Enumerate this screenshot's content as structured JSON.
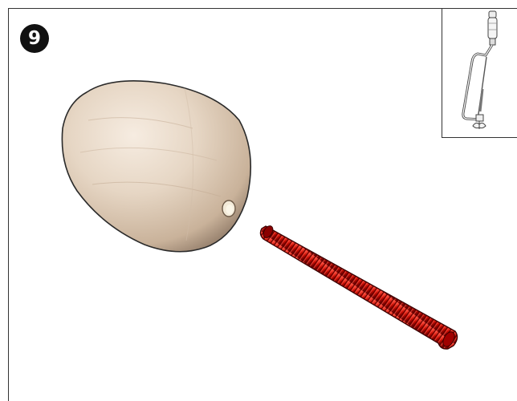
{
  "step": {
    "number": "9"
  },
  "parts": {
    "knob_icon": "wooden-knob-with-hole",
    "rod_icon": "red-threaded-rod",
    "inset_icon": "assembled-tool-thumbnail"
  },
  "colors": {
    "badge": "#111111",
    "wood": "#e2d2bf",
    "rod": "#b80000",
    "frame": "#333333"
  }
}
